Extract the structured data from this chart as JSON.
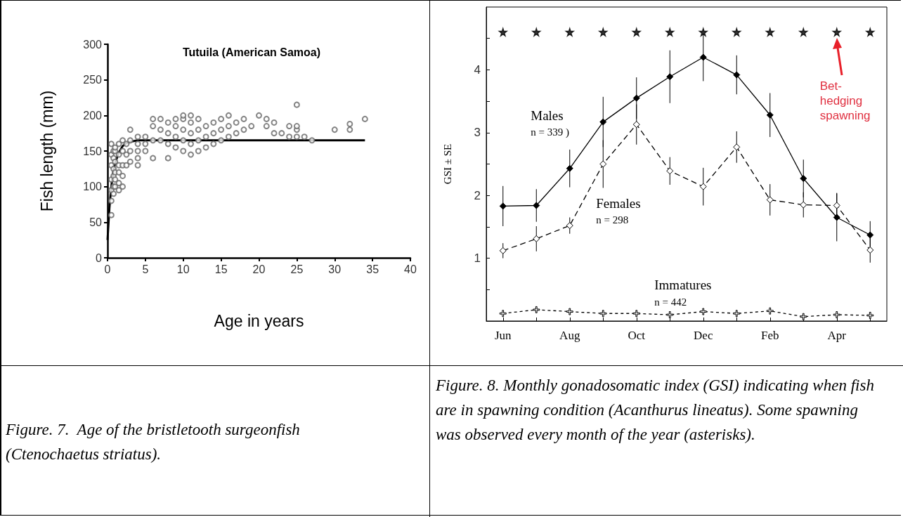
{
  "chart_data": [
    {
      "type": "scatter",
      "title": "Tutuila (American Samoa)",
      "xlabel": "Age in years",
      "ylabel": "Fish length (mm)",
      "xlim": [
        0,
        40
      ],
      "xticks": [
        0,
        5,
        10,
        15,
        20,
        25,
        30,
        35,
        40
      ],
      "ylim": [
        0,
        300
      ],
      "yticks": [
        0,
        50,
        100,
        150,
        200,
        250,
        300
      ],
      "series": [
        {
          "color": "#666666",
          "marker": "circle",
          "x": [
            0.5,
            0.5,
            0.5,
            0.5,
            0.5,
            0.5,
            0.5,
            0.8,
            0.8,
            0.8,
            0.8,
            0.8,
            0.8,
            1,
            1,
            1,
            1,
            1,
            1,
            1.5,
            1.5,
            1.5,
            1.5,
            1.5,
            1.5,
            2,
            2,
            2,
            2,
            2,
            2.5,
            2.5,
            2.5,
            3,
            3,
            3,
            3,
            4,
            4,
            4,
            4,
            4,
            5,
            5,
            5,
            6,
            6,
            6,
            6,
            7,
            7,
            7,
            8,
            8,
            8,
            8,
            9,
            9,
            9,
            9,
            10,
            10,
            10,
            10,
            10,
            11,
            11,
            11,
            11,
            11,
            12,
            12,
            12,
            12,
            13,
            13,
            13,
            14,
            14,
            14,
            15,
            15,
            15,
            16,
            16,
            16,
            17,
            17,
            18,
            18,
            19,
            20,
            21,
            21,
            22,
            22,
            23,
            24,
            24,
            25,
            25,
            25,
            25,
            26,
            27,
            30,
            32,
            32,
            34
          ],
          "values": [
            60,
            80,
            95,
            110,
            130,
            145,
            160,
            90,
            100,
            115,
            125,
            140,
            150,
            100,
            110,
            120,
            135,
            150,
            155,
            95,
            105,
            120,
            130,
            145,
            160,
            100,
            115,
            130,
            150,
            165,
            130,
            145,
            160,
            135,
            150,
            165,
            180,
            130,
            140,
            150,
            160,
            170,
            150,
            160,
            170,
            140,
            165,
            185,
            195,
            165,
            180,
            195,
            140,
            160,
            175,
            190,
            155,
            170,
            185,
            195,
            150,
            165,
            180,
            195,
            200,
            145,
            160,
            175,
            190,
            200,
            150,
            165,
            180,
            195,
            155,
            170,
            185,
            160,
            175,
            190,
            165,
            180,
            195,
            170,
            185,
            200,
            175,
            190,
            180,
            195,
            185,
            200,
            185,
            195,
            175,
            190,
            175,
            170,
            185,
            170,
            180,
            185,
            215,
            170,
            165,
            180,
            180,
            188,
            195
          ]
        },
        {
          "type": "line",
          "color": "#000000",
          "marker": "none",
          "x": [
            0,
            0.25,
            0.5,
            0.75,
            1,
            1.5,
            2,
            2.5,
            3,
            4,
            10,
            34
          ],
          "values": [
            25,
            70,
            100,
            120,
            133,
            148,
            157,
            161,
            163,
            165,
            165,
            165
          ]
        }
      ],
      "annotations": [
        "Figure. 7.  Age of the bristletooth surgeonfish (Ctenochaetus striatus)."
      ]
    },
    {
      "type": "line",
      "ylabel": "GSI ± SE",
      "categories": [
        "Jun",
        null,
        "Aug",
        null,
        "Oct",
        null,
        "Dec",
        null,
        "Feb",
        null,
        "Apr",
        null
      ],
      "ylim": [
        0,
        5
      ],
      "yticks": [
        {
          "value": 0.5,
          "label": null
        },
        1,
        {
          "value": 1.5,
          "label": null
        },
        2,
        {
          "value": 2.5,
          "label": null
        },
        3,
        {
          "value": 3.5,
          "label": null
        },
        4,
        {
          "value": 4.5,
          "label": null
        }
      ],
      "series": [
        {
          "name": "Males",
          "color": "#000000",
          "marker": "diamond",
          "line_style": "solid",
          "values": [
            1.83,
            1.84,
            2.43,
            3.17,
            3.55,
            3.89,
            4.2,
            3.92,
            3.28,
            2.27,
            1.65,
            1.37
          ],
          "errors": [
            0.32,
            0.26,
            0.3,
            0.4,
            0.33,
            0.42,
            0.38,
            0.31,
            0.35,
            0.3,
            0.38,
            0.22
          ]
        },
        {
          "name": "Females",
          "color": "#000000",
          "marker": "diamond",
          "line_style": "dashed",
          "values": [
            1.12,
            1.31,
            1.52,
            2.5,
            3.13,
            2.39,
            2.14,
            2.77,
            1.93,
            1.85,
            1.84,
            1.13
          ],
          "errors": [
            0.12,
            0.2,
            0.13,
            0.38,
            0.32,
            0.22,
            0.3,
            0.25,
            0.25,
            0.2,
            0.2,
            0.2
          ]
        },
        {
          "name": "Immatures",
          "color": "#000000",
          "marker": "cross",
          "line_style": "dotted",
          "values": [
            0.12,
            0.18,
            0.15,
            0.12,
            0.12,
            0.1,
            0.15,
            0.12,
            0.16,
            0.07,
            0.1,
            0.09
          ]
        },
        {
          "type": "scatter",
          "color": "#000000",
          "marker": "star",
          "values": [
            4.6,
            4.6,
            4.6,
            4.6,
            4.6,
            4.6,
            4.6,
            4.6,
            4.6,
            4.6,
            4.6,
            4.6
          ]
        }
      ],
      "annotations": [
        "n = 339 )",
        "n = 298",
        "n = 442",
        "Bet-\nhedging\nspawning",
        "Figure. 8. Monthly gonadosomatic index (GSI) indicating when fish are in spawning condition (Acanthurus lineatus). Some spawning was observed every month of the year (asterisks)."
      ]
    }
  ]
}
